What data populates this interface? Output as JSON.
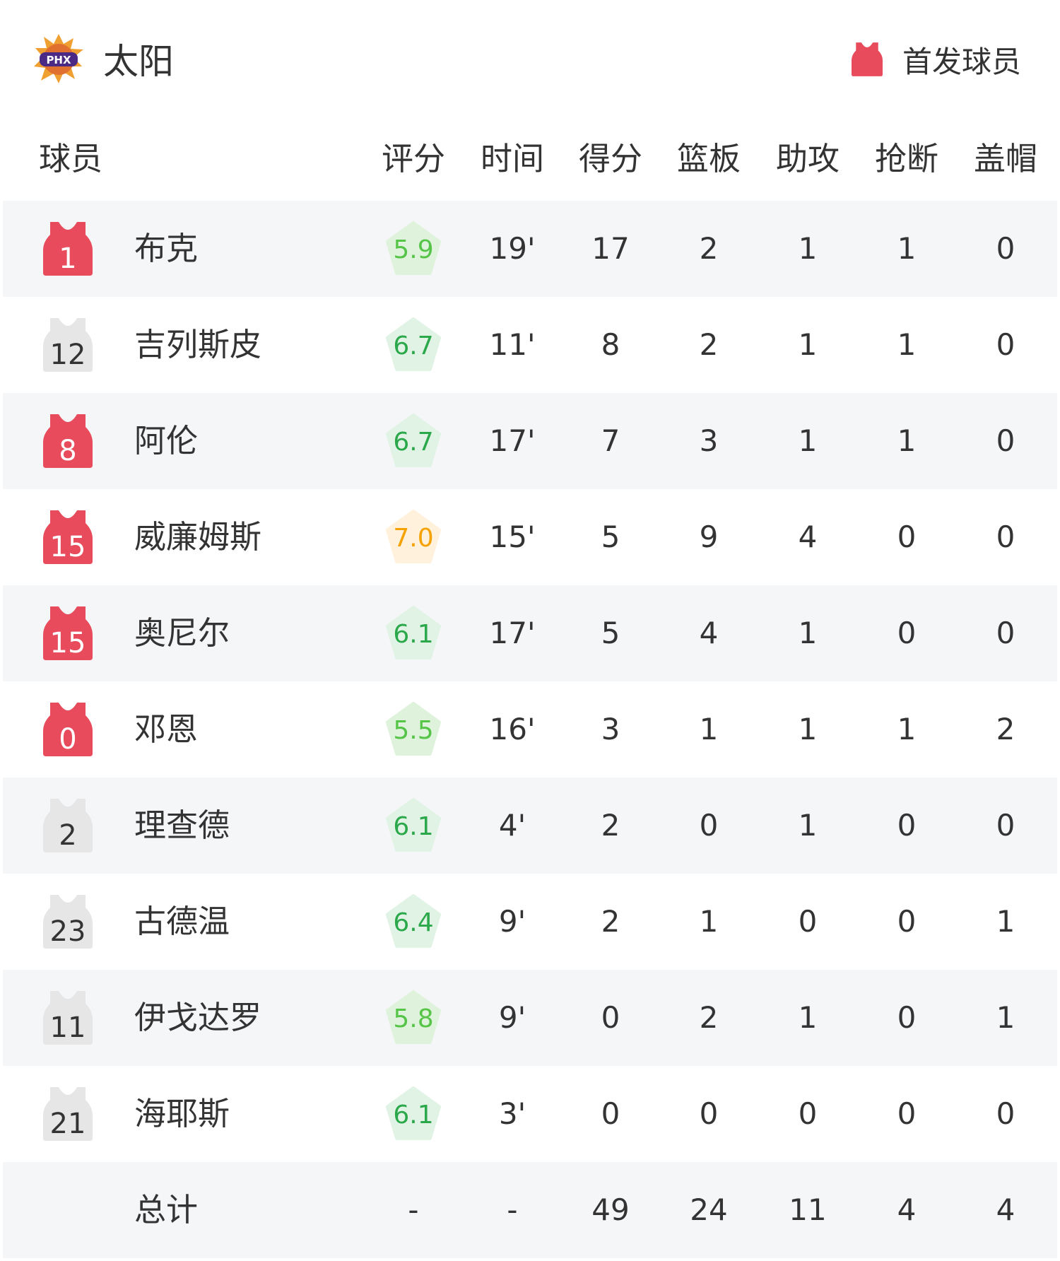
{
  "team": {
    "name": "太阳",
    "logo_text": "PHX",
    "logo": "phoenix-suns-logo"
  },
  "legend": {
    "label": "首发球员",
    "color": "#e84c5c"
  },
  "headers": [
    "球员",
    "评分",
    "时间",
    "得分",
    "篮板",
    "助攻",
    "抢断",
    "盖帽"
  ],
  "colors": {
    "starter": "#e84c5c",
    "bench": "#e6e6e6",
    "rating_low_green": "#55c447",
    "rating_green": "#2aa84a",
    "rating_orange": "#f5a100"
  },
  "players": [
    {
      "num": "1",
      "name": "布克",
      "starter": true,
      "rating": "5.9",
      "min": "19'",
      "pts": "17",
      "reb": "2",
      "ast": "1",
      "stl": "1",
      "blk": "0"
    },
    {
      "num": "12",
      "name": "吉列斯皮",
      "starter": false,
      "rating": "6.7",
      "min": "11'",
      "pts": "8",
      "reb": "2",
      "ast": "1",
      "stl": "1",
      "blk": "0"
    },
    {
      "num": "8",
      "name": "阿伦",
      "starter": true,
      "rating": "6.7",
      "min": "17'",
      "pts": "7",
      "reb": "3",
      "ast": "1",
      "stl": "1",
      "blk": "0"
    },
    {
      "num": "15",
      "name": "威廉姆斯",
      "starter": true,
      "rating": "7.0",
      "min": "15'",
      "pts": "5",
      "reb": "9",
      "ast": "4",
      "stl": "0",
      "blk": "0"
    },
    {
      "num": "15",
      "name": "奥尼尔",
      "starter": true,
      "rating": "6.1",
      "min": "17'",
      "pts": "5",
      "reb": "4",
      "ast": "1",
      "stl": "0",
      "blk": "0"
    },
    {
      "num": "0",
      "name": "邓恩",
      "starter": true,
      "rating": "5.5",
      "min": "16'",
      "pts": "3",
      "reb": "1",
      "ast": "1",
      "stl": "1",
      "blk": "2"
    },
    {
      "num": "2",
      "name": "理查德",
      "starter": false,
      "rating": "6.1",
      "min": "4'",
      "pts": "2",
      "reb": "0",
      "ast": "1",
      "stl": "0",
      "blk": "0"
    },
    {
      "num": "23",
      "name": "古德温",
      "starter": false,
      "rating": "6.4",
      "min": "9'",
      "pts": "2",
      "reb": "1",
      "ast": "0",
      "stl": "0",
      "blk": "1"
    },
    {
      "num": "11",
      "name": "伊戈达罗",
      "starter": false,
      "rating": "5.8",
      "min": "9'",
      "pts": "0",
      "reb": "2",
      "ast": "1",
      "stl": "0",
      "blk": "1"
    },
    {
      "num": "21",
      "name": "海耶斯",
      "starter": false,
      "rating": "6.1",
      "min": "3'",
      "pts": "0",
      "reb": "0",
      "ast": "0",
      "stl": "0",
      "blk": "0"
    }
  ],
  "total": {
    "name": "总计",
    "rating": "-",
    "min": "-",
    "pts": "49",
    "reb": "24",
    "ast": "11",
    "stl": "4",
    "blk": "4"
  }
}
